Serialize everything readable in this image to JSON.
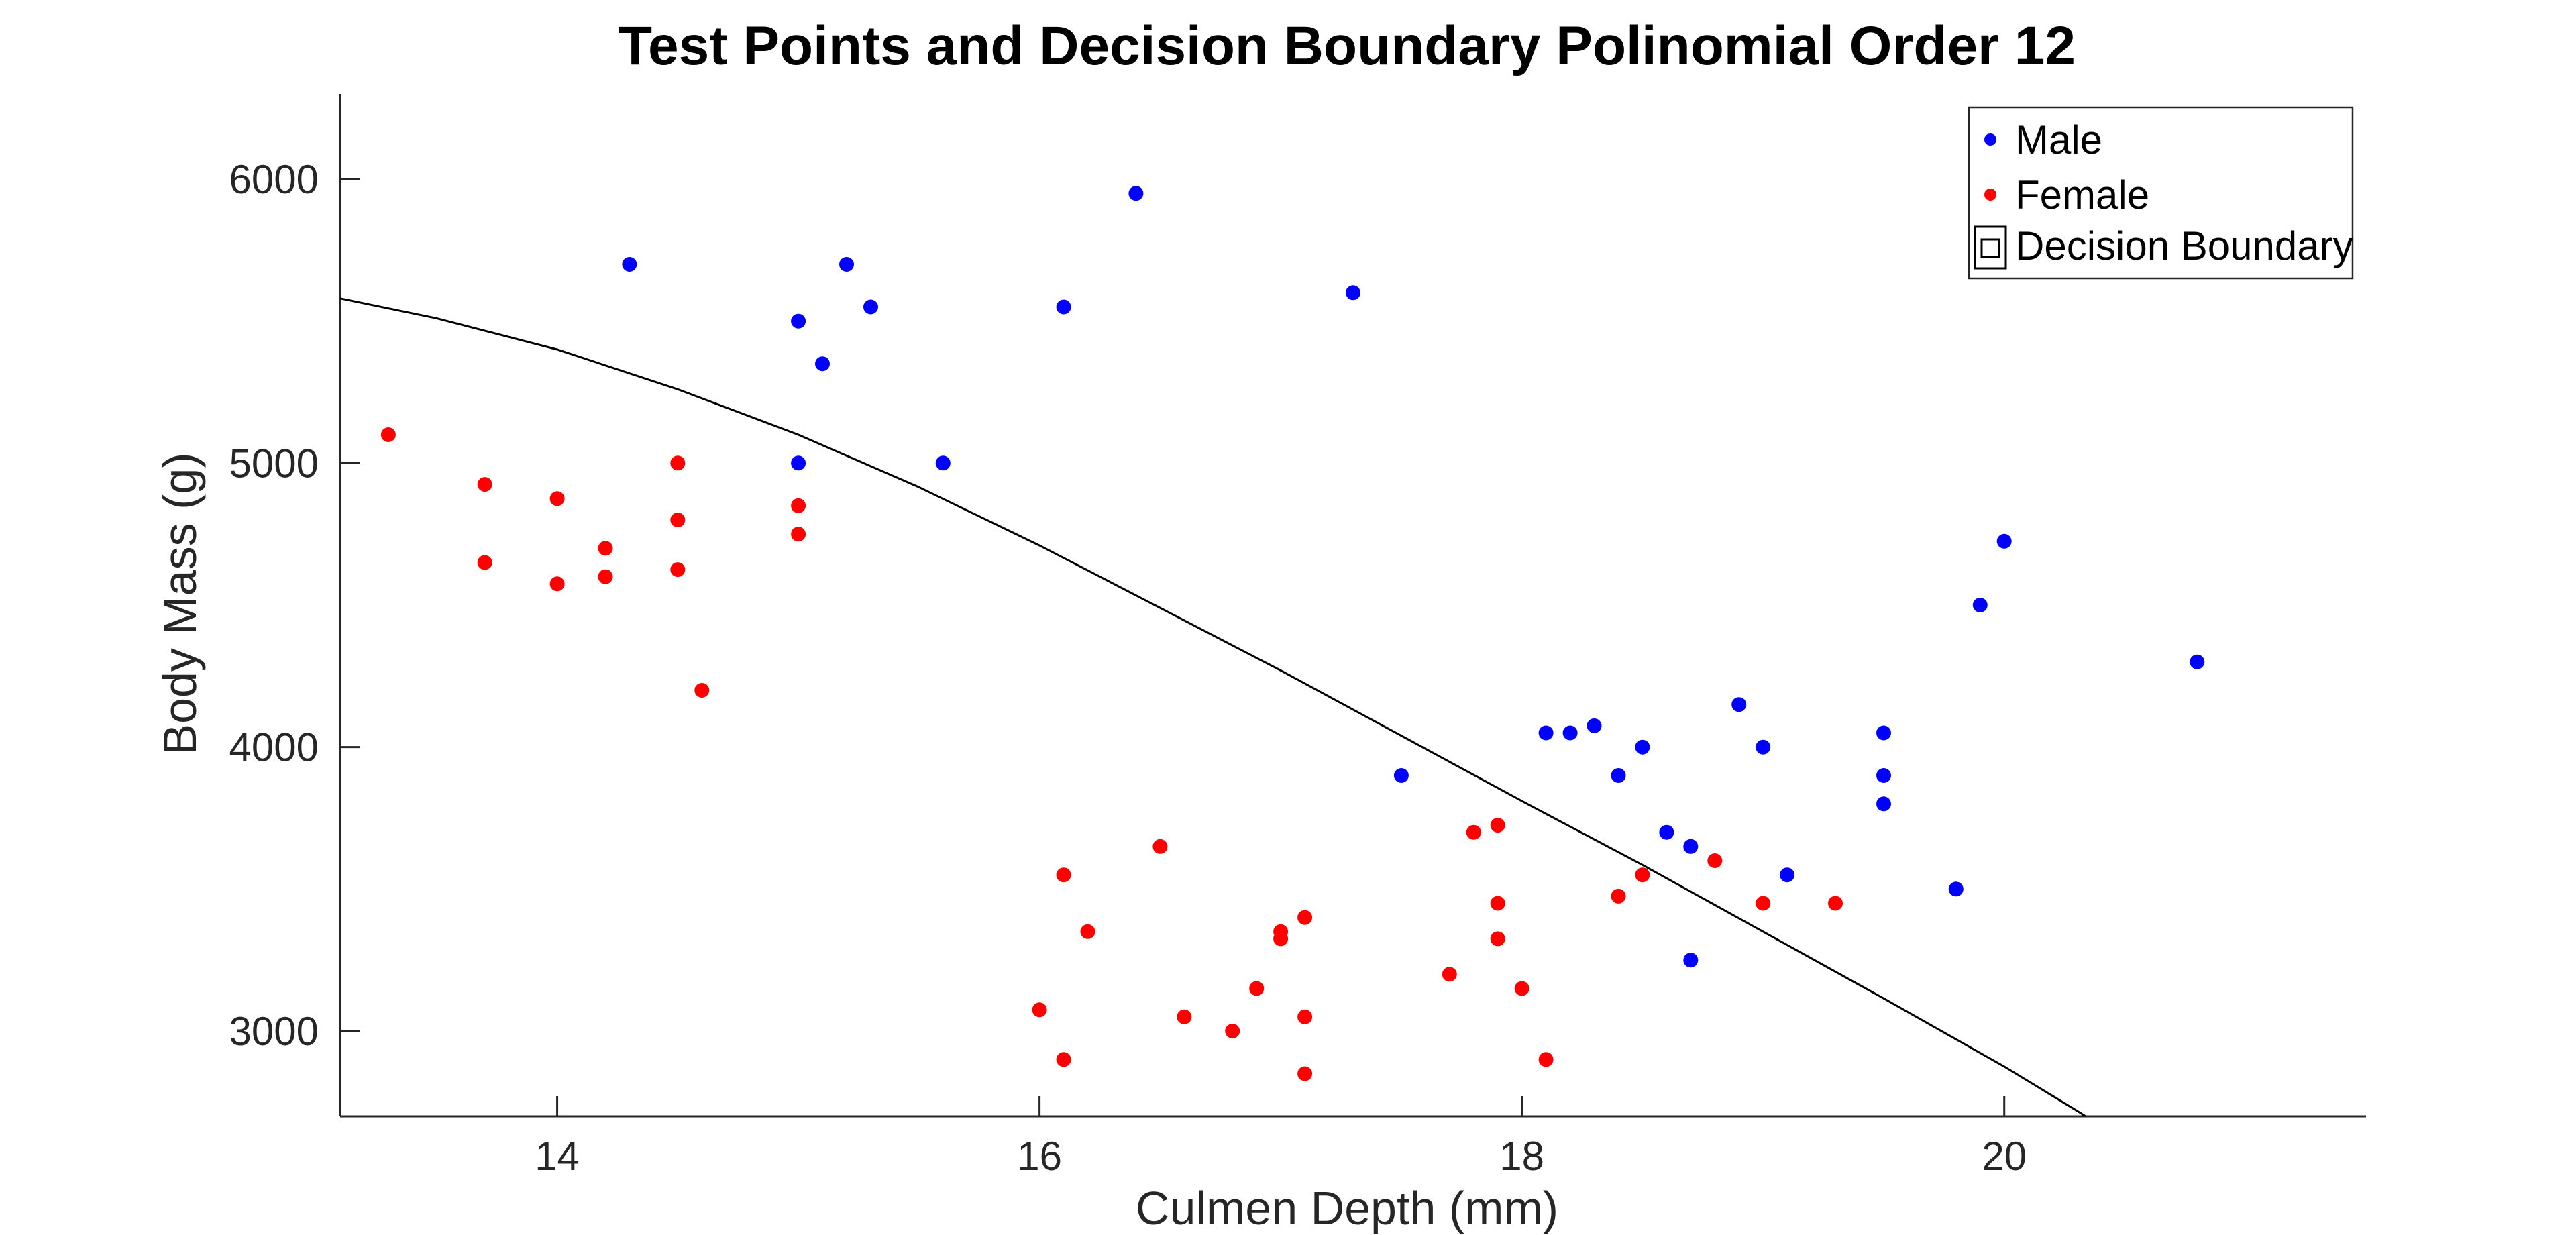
{
  "chart_data": {
    "type": "scatter",
    "title": "Test Points and Decision Boundary Polinomial Order 12",
    "xlabel": "Culmen Depth (mm)",
    "ylabel": "Body Mass (g)",
    "xlim": [
      13.1,
      21.5
    ],
    "ylim": [
      2700,
      6300
    ],
    "xticks": [
      14,
      16,
      18,
      20
    ],
    "yticks": [
      3000,
      4000,
      5000,
      6000
    ],
    "x_tick_labels": [
      "14",
      "16",
      "18",
      "20"
    ],
    "y_tick_labels": [
      "3000",
      "4000",
      "5000",
      "6000"
    ],
    "grid": false,
    "legend_position": "top-right",
    "series": [
      {
        "name": "Male",
        "color": "#0000ff",
        "points": [
          [
            14.3,
            5700
          ],
          [
            15.0,
            5500
          ],
          [
            15.1,
            5350
          ],
          [
            15.2,
            5700
          ],
          [
            15.3,
            5550
          ],
          [
            15.0,
            5000
          ],
          [
            15.6,
            5000
          ],
          [
            16.1,
            5550
          ],
          [
            16.4,
            5950
          ],
          [
            17.3,
            5600
          ],
          [
            17.5,
            3900
          ],
          [
            18.1,
            4050
          ],
          [
            18.2,
            4050
          ],
          [
            18.3,
            4075
          ],
          [
            18.4,
            3900
          ],
          [
            18.5,
            4000
          ],
          [
            18.6,
            3700
          ],
          [
            18.7,
            3650
          ],
          [
            18.7,
            3250
          ],
          [
            18.9,
            4150
          ],
          [
            19.0,
            4000
          ],
          [
            19.1,
            3550
          ],
          [
            19.5,
            4050
          ],
          [
            19.5,
            3900
          ],
          [
            19.5,
            3800
          ],
          [
            19.8,
            3500
          ],
          [
            19.9,
            4500
          ],
          [
            20.0,
            4725
          ],
          [
            20.8,
            4300
          ]
        ]
      },
      {
        "name": "Female",
        "color": "#ff0000",
        "points": [
          [
            13.3,
            5100
          ],
          [
            13.7,
            4925
          ],
          [
            13.7,
            4650
          ],
          [
            14.0,
            4875
          ],
          [
            14.0,
            4575
          ],
          [
            14.2,
            4700
          ],
          [
            14.2,
            4600
          ],
          [
            14.5,
            5000
          ],
          [
            14.5,
            4800
          ],
          [
            14.5,
            4625
          ],
          [
            14.6,
            4200
          ],
          [
            15.0,
            4850
          ],
          [
            15.0,
            4750
          ],
          [
            16.0,
            3075
          ],
          [
            16.1,
            3550
          ],
          [
            16.1,
            2900
          ],
          [
            16.2,
            3350
          ],
          [
            16.5,
            3650
          ],
          [
            16.6,
            3050
          ],
          [
            16.8,
            3000
          ],
          [
            16.9,
            3150
          ],
          [
            17.0,
            3350
          ],
          [
            17.0,
            3325
          ],
          [
            17.1,
            3400
          ],
          [
            17.1,
            3050
          ],
          [
            17.1,
            2850
          ],
          [
            17.7,
            3200
          ],
          [
            17.8,
            3700
          ],
          [
            17.9,
            3725
          ],
          [
            17.9,
            3450
          ],
          [
            17.9,
            3325
          ],
          [
            18.0,
            3150
          ],
          [
            18.1,
            2900
          ],
          [
            18.4,
            3475
          ],
          [
            18.5,
            3550
          ],
          [
            18.8,
            3600
          ],
          [
            19.0,
            3450
          ],
          [
            19.3,
            3450
          ]
        ]
      },
      {
        "name": "Decision Boundary",
        "color": "#000000",
        "kind": "line",
        "points": [
          [
            13.1,
            5580
          ],
          [
            13.5,
            5510
          ],
          [
            14.0,
            5400
          ],
          [
            14.5,
            5260
          ],
          [
            15.0,
            5100
          ],
          [
            15.5,
            4915
          ],
          [
            16.0,
            4710
          ],
          [
            16.5,
            4490
          ],
          [
            17.0,
            4270
          ],
          [
            17.5,
            4040
          ],
          [
            18.0,
            3810
          ],
          [
            18.5,
            3585
          ],
          [
            19.0,
            3350
          ],
          [
            19.5,
            3115
          ],
          [
            20.0,
            2875
          ],
          [
            20.3,
            2720
          ],
          [
            20.45,
            2640
          ]
        ]
      }
    ],
    "legend": [
      "Male",
      "Female",
      "Decision Boundary"
    ]
  }
}
